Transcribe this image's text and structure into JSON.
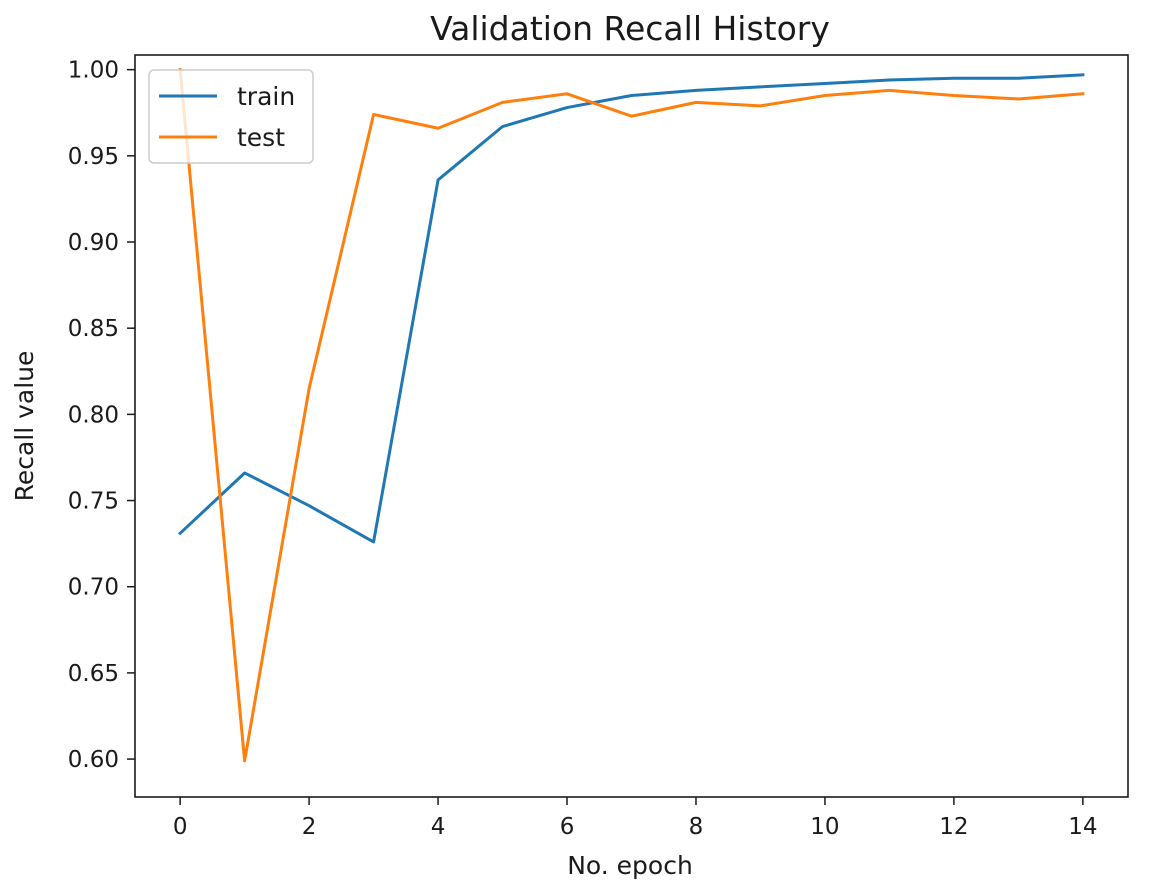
{
  "chart_data": {
    "type": "line",
    "title": "Validation Recall History",
    "xlabel": "No. epoch",
    "ylabel": "Recall value",
    "x": [
      0,
      1,
      2,
      3,
      4,
      5,
      6,
      7,
      8,
      9,
      10,
      11,
      12,
      13,
      14
    ],
    "xlim": [
      -0.7,
      14.7
    ],
    "ylim": [
      0.578,
      1.0085
    ],
    "xticks": [
      0,
      2,
      4,
      6,
      8,
      10,
      12,
      14
    ],
    "xtick_labels": [
      "0",
      "2",
      "4",
      "6",
      "8",
      "10",
      "12",
      "14"
    ],
    "yticks": [
      0.6,
      0.65,
      0.7,
      0.75,
      0.8,
      0.85,
      0.9,
      0.95,
      1.0
    ],
    "ytick_labels": [
      "0.60",
      "0.65",
      "0.70",
      "0.75",
      "0.80",
      "0.85",
      "0.90",
      "0.95",
      "1.00"
    ],
    "grid": false,
    "legend_position": "top-left",
    "series": [
      {
        "name": "train",
        "color": "#1f77b4",
        "values": [
          0.731,
          0.766,
          0.747,
          0.726,
          0.936,
          0.967,
          0.978,
          0.985,
          0.988,
          0.99,
          0.992,
          0.994,
          0.995,
          0.995,
          0.997
        ]
      },
      {
        "name": "test",
        "color": "#ff7f0e",
        "values": [
          1.0,
          0.599,
          0.815,
          0.974,
          0.966,
          0.981,
          0.986,
          0.973,
          0.981,
          0.979,
          0.985,
          0.988,
          0.985,
          0.983,
          0.986
        ]
      }
    ]
  }
}
